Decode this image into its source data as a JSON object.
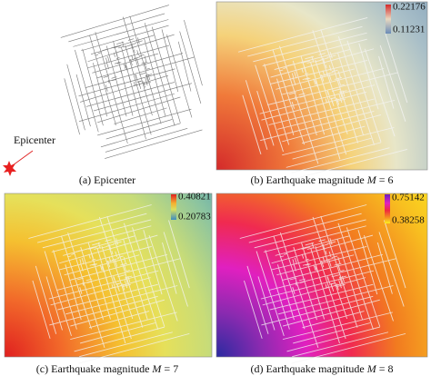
{
  "panels": [
    {
      "caption": {
        "label": "(a) Epicenter"
      },
      "annotation": "Epicenter"
    },
    {
      "caption": {
        "label": "(b) Earthquake magnitude",
        "symbol": "M",
        "value": "= 6"
      },
      "colorbar": {
        "max": 0.22176,
        "min": 0.11231
      }
    },
    {
      "caption": {
        "label": "(c) Earthquake magnitude",
        "symbol": "M",
        "value": "= 7"
      },
      "colorbar": {
        "max": 0.40821,
        "min": 0.20783
      }
    },
    {
      "caption": {
        "label": "(d) Earthquake magnitude",
        "symbol": "M",
        "value": "= 8"
      },
      "colorbar": {
        "max": 0.75142,
        "min": 0.38258
      }
    }
  ]
}
